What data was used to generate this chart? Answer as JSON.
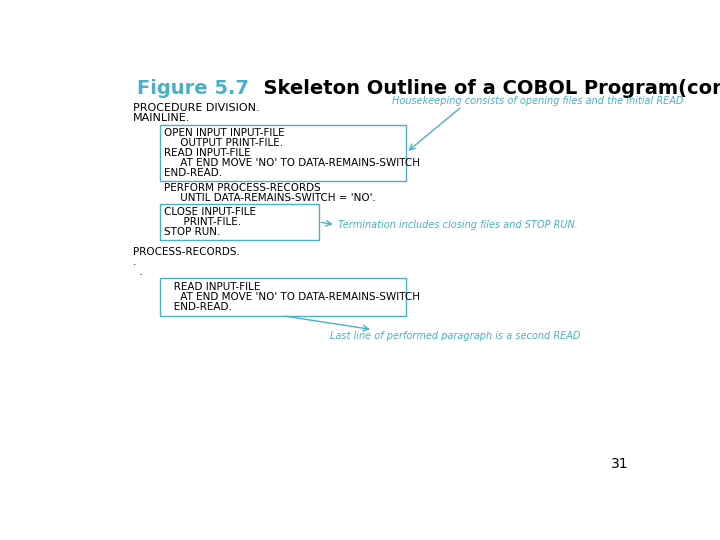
{
  "title_blue": "Figure 5.7",
  "title_black": "  Skeleton Outline of a COBOL Program(cont.)",
  "title_fontsize": 14,
  "bg_color": "#ffffff",
  "code_color": "#000000",
  "annotation_color": "#4ab0c8",
  "box_edge_color": "#4ab0c8",
  "mono_font": "Courier New",
  "box1_lines": [
    "OPEN INPUT INPUT-FILE",
    "     OUTPUT PRINT-FILE.",
    "READ INPUT-FILE",
    "     AT END MOVE 'NO' TO DATA-REMAINS-SWITCH",
    "END-READ."
  ],
  "middle_lines": [
    "PERFORM PROCESS-RECORDS",
    "     UNTIL DATA-REMAINS-SWITCH = 'NO'."
  ],
  "box2_lines": [
    "CLOSE INPUT-FILE",
    "      PRINT-FILE.",
    "STOP RUN."
  ],
  "after_lines": [
    "PROCESS-RECORDS.",
    ".",
    "  ."
  ],
  "box3_lines": [
    "   READ INPUT-FILE",
    "     AT END MOVE 'NO' TO DATA-REMAINS-SWITCH",
    "   END-READ."
  ],
  "ann1_text": "Housekeeping consists of opening files and the initial READ",
  "ann2_text": "Termination includes closing files and STOP RUN.",
  "ann3_text": "Last line of performed paragraph is a second READ",
  "page_num": "31"
}
